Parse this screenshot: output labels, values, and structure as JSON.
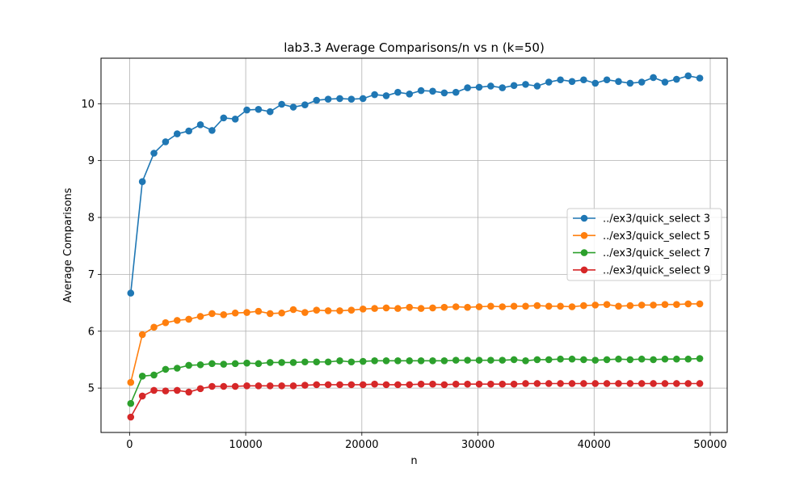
{
  "chart_data": {
    "type": "line",
    "title": "lab3.3 Average Comparisons/n vs n (k=50)",
    "xlabel": "n",
    "ylabel": "Average Comparisons",
    "xlim": [
      -2460,
      51460
    ],
    "ylim": [
      4.22,
      10.8
    ],
    "xticks": [
      0,
      10000,
      20000,
      30000,
      40000,
      50000
    ],
    "yticks": [
      5,
      6,
      7,
      8,
      9,
      10
    ],
    "grid": true,
    "legend_position": "center-right",
    "x": [
      100,
      1100,
      2100,
      3100,
      4100,
      5100,
      6100,
      7100,
      8100,
      9100,
      10100,
      11100,
      12100,
      13100,
      14100,
      15100,
      16100,
      17100,
      18100,
      19100,
      20100,
      21100,
      22100,
      23100,
      24100,
      25100,
      26100,
      27100,
      28100,
      29100,
      30100,
      31100,
      32100,
      33100,
      34100,
      35100,
      36100,
      37100,
      38100,
      39100,
      40100,
      41100,
      42100,
      43100,
      44100,
      45100,
      46100,
      47100,
      48100,
      49100
    ],
    "series": [
      {
        "name": "../ex3/quick_select 3",
        "color": "#1f77b4",
        "values": [
          6.67,
          8.63,
          9.13,
          9.33,
          9.47,
          9.52,
          9.63,
          9.53,
          9.75,
          9.73,
          9.89,
          9.9,
          9.86,
          9.99,
          9.94,
          9.98,
          10.06,
          10.08,
          10.09,
          10.08,
          10.09,
          10.16,
          10.14,
          10.2,
          10.17,
          10.23,
          10.22,
          10.19,
          10.2,
          10.28,
          10.29,
          10.31,
          10.28,
          10.32,
          10.34,
          10.31,
          10.38,
          10.42,
          10.39,
          10.42,
          10.36,
          10.42,
          10.39,
          10.36,
          10.38,
          10.46,
          10.38,
          10.43,
          10.49,
          10.45
        ]
      },
      {
        "name": "../ex3/quick_select 5",
        "color": "#ff7f0e",
        "values": [
          5.1,
          5.94,
          6.07,
          6.15,
          6.19,
          6.21,
          6.26,
          6.31,
          6.29,
          6.32,
          6.33,
          6.35,
          6.31,
          6.32,
          6.38,
          6.33,
          6.37,
          6.36,
          6.36,
          6.37,
          6.39,
          6.4,
          6.41,
          6.4,
          6.42,
          6.4,
          6.41,
          6.42,
          6.43,
          6.42,
          6.43,
          6.44,
          6.43,
          6.44,
          6.44,
          6.45,
          6.44,
          6.44,
          6.43,
          6.45,
          6.46,
          6.47,
          6.44,
          6.45,
          6.46,
          6.46,
          6.47,
          6.47,
          6.48,
          6.48
        ]
      },
      {
        "name": "../ex3/quick_select 7",
        "color": "#2ca02c",
        "values": [
          4.73,
          5.21,
          5.23,
          5.33,
          5.35,
          5.4,
          5.41,
          5.43,
          5.42,
          5.43,
          5.44,
          5.43,
          5.45,
          5.45,
          5.45,
          5.46,
          5.46,
          5.46,
          5.48,
          5.46,
          5.47,
          5.48,
          5.48,
          5.48,
          5.48,
          5.48,
          5.48,
          5.48,
          5.49,
          5.49,
          5.49,
          5.49,
          5.49,
          5.5,
          5.48,
          5.5,
          5.5,
          5.51,
          5.51,
          5.5,
          5.49,
          5.5,
          5.51,
          5.5,
          5.51,
          5.5,
          5.51,
          5.51,
          5.51,
          5.52
        ]
      },
      {
        "name": "../ex3/quick_select 9",
        "color": "#d62728",
        "values": [
          4.49,
          4.86,
          4.96,
          4.95,
          4.96,
          4.93,
          4.99,
          5.03,
          5.03,
          5.03,
          5.04,
          5.04,
          5.04,
          5.04,
          5.04,
          5.05,
          5.06,
          5.06,
          5.06,
          5.06,
          5.06,
          5.07,
          5.06,
          5.06,
          5.06,
          5.07,
          5.07,
          5.06,
          5.07,
          5.07,
          5.07,
          5.07,
          5.07,
          5.07,
          5.08,
          5.08,
          5.08,
          5.08,
          5.08,
          5.08,
          5.08,
          5.08,
          5.08,
          5.08,
          5.08,
          5.08,
          5.08,
          5.08,
          5.08,
          5.08
        ]
      }
    ]
  }
}
